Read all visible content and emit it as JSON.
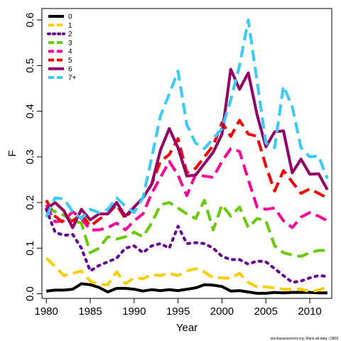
{
  "chart_data": {
    "type": "line",
    "xlabel": "Year",
    "ylabel": "F",
    "xlim": [
      1979.5,
      2012.5
    ],
    "ylim": [
      -0.01,
      0.625
    ],
    "x_ticks": [
      1980,
      1985,
      1990,
      1995,
      2000,
      2005,
      2010
    ],
    "y_ticks": [
      0.0,
      0.1,
      0.2,
      0.3,
      0.4,
      0.5,
      0.6
    ],
    "y_tick_labels": [
      "0.0",
      "0.1",
      "0.2",
      "0.3",
      "0.4",
      "0.5",
      "0.6"
    ],
    "legend_position": "top-left",
    "credit": "stockassessment.org, Mack-all-data, r2809",
    "x": [
      1980,
      1981,
      1982,
      1983,
      1984,
      1985,
      1986,
      1987,
      1988,
      1989,
      1990,
      1991,
      1992,
      1993,
      1994,
      1995,
      1996,
      1997,
      1998,
      1999,
      2000,
      2001,
      2002,
      2003,
      2004,
      2005,
      2006,
      2007,
      2008,
      2009,
      2010,
      2011,
      2012
    ],
    "series": [
      {
        "name": "0",
        "color": "#000000",
        "dash": "solid",
        "values": [
          0.006,
          0.008,
          0.008,
          0.01,
          0.022,
          0.02,
          0.014,
          0.004,
          0.012,
          0.012,
          0.01,
          0.006,
          0.009,
          0.007,
          0.009,
          0.007,
          0.01,
          0.013,
          0.02,
          0.019,
          0.016,
          0.006,
          0.007,
          0.004,
          0.001,
          0.001,
          0.003,
          0.002,
          0.003,
          0.003,
          0.003,
          0.002,
          0.002
        ]
      },
      {
        "name": "1",
        "color": "#ffcc00",
        "dash": "dashed",
        "values": [
          0.078,
          0.06,
          0.04,
          0.045,
          0.05,
          0.028,
          0.02,
          0.02,
          0.048,
          0.022,
          0.035,
          0.033,
          0.042,
          0.04,
          0.045,
          0.04,
          0.05,
          0.055,
          0.048,
          0.035,
          0.035,
          0.034,
          0.045,
          0.025,
          0.015,
          0.015,
          0.013,
          0.01,
          0.01,
          0.01,
          0.005,
          0.008,
          0.015
        ]
      },
      {
        "name": "2",
        "color": "#660099",
        "dash": "dotted",
        "values": [
          0.185,
          0.135,
          0.128,
          0.13,
          0.1,
          0.05,
          0.062,
          0.07,
          0.078,
          0.1,
          0.105,
          0.09,
          0.105,
          0.11,
          0.1,
          0.148,
          0.11,
          0.112,
          0.11,
          0.1,
          0.082,
          0.075,
          0.075,
          0.065,
          0.072,
          0.07,
          0.055,
          0.04,
          0.025,
          0.028,
          0.035,
          0.04,
          0.038
        ]
      },
      {
        "name": "3",
        "color": "#66cc00",
        "dash": "dashed",
        "values": [
          0.19,
          0.18,
          0.172,
          0.16,
          0.155,
          0.09,
          0.1,
          0.125,
          0.12,
          0.125,
          0.135,
          0.125,
          0.155,
          0.195,
          0.2,
          0.188,
          0.175,
          0.165,
          0.205,
          0.14,
          0.195,
          0.17,
          0.19,
          0.145,
          0.165,
          0.16,
          0.105,
          0.09,
          0.085,
          0.082,
          0.09,
          0.095,
          0.095
        ]
      },
      {
        "name": "4",
        "color": "#ff0099",
        "dash": "dashed",
        "values": [
          0.195,
          0.158,
          0.16,
          0.18,
          0.165,
          0.14,
          0.14,
          0.145,
          0.155,
          0.14,
          0.16,
          0.175,
          0.22,
          0.255,
          0.29,
          0.26,
          0.215,
          0.262,
          0.258,
          0.255,
          0.29,
          0.318,
          0.312,
          0.25,
          0.19,
          0.185,
          0.188,
          0.16,
          0.145,
          0.168,
          0.178,
          0.17,
          0.16
        ]
      },
      {
        "name": "5",
        "color": "#ff0000",
        "dash": "dashed",
        "values": [
          0.205,
          0.17,
          0.155,
          0.16,
          0.175,
          0.148,
          0.163,
          0.175,
          0.195,
          0.165,
          0.19,
          0.21,
          0.24,
          0.29,
          0.305,
          0.34,
          0.265,
          0.275,
          0.3,
          0.325,
          0.375,
          0.345,
          0.38,
          0.35,
          0.345,
          0.28,
          0.225,
          0.27,
          0.245,
          0.22,
          0.23,
          0.22,
          0.21
        ]
      },
      {
        "name": "6",
        "color": "#990066",
        "dash": "solid",
        "values": [
          0.185,
          0.2,
          0.182,
          0.145,
          0.185,
          0.162,
          0.175,
          0.175,
          0.2,
          0.17,
          0.19,
          0.21,
          0.24,
          0.315,
          0.362,
          0.32,
          0.258,
          0.26,
          0.285,
          0.31,
          0.35,
          0.492,
          0.448,
          0.484,
          0.392,
          0.322,
          0.355,
          0.357,
          0.265,
          0.295,
          0.262,
          0.263,
          0.228
        ]
      },
      {
        "name": "7+",
        "color": "#33ccff",
        "dash": "dashed",
        "values": [
          0.168,
          0.21,
          0.208,
          0.18,
          0.165,
          0.185,
          0.178,
          0.185,
          0.21,
          0.192,
          0.178,
          0.21,
          0.298,
          0.39,
          0.438,
          0.488,
          0.37,
          0.33,
          0.318,
          0.34,
          0.362,
          0.425,
          0.5,
          0.6,
          0.465,
          0.33,
          0.32,
          0.455,
          0.41,
          0.32,
          0.3,
          0.302,
          0.252
        ]
      }
    ]
  }
}
